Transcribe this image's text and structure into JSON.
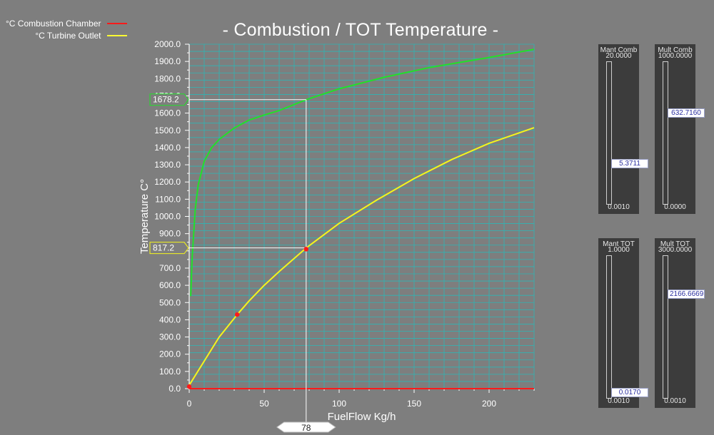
{
  "legend": {
    "items": [
      {
        "label": "°C Combustion Chamber",
        "color": "#ff1a1a"
      },
      {
        "label": "°C Turbine Outlet",
        "color": "#ffff33"
      }
    ]
  },
  "title": "- Combustion / TOT  Temperature -",
  "chart_data": {
    "type": "line",
    "title": "- Combustion / TOT  Temperature -",
    "xlabel": "FuelFlow Kg/h",
    "ylabel": "Temperature C°",
    "xlim": [
      0,
      230
    ],
    "ylim": [
      0,
      2000
    ],
    "x_ticks": [
      "0",
      "50",
      "100",
      "150",
      "200"
    ],
    "y_ticks": [
      "0.0",
      "100.0",
      "200.0",
      "300.0",
      "400.0",
      "500.0",
      "600.0",
      "700.0",
      "800.0",
      "900.0",
      "1000.0",
      "1100.0",
      "1200.0",
      "1300.0",
      "1400.0",
      "1500.0",
      "1600.0",
      "1700.0",
      "1800.0",
      "1900.0",
      "2000.0"
    ],
    "grid": true,
    "background_color": "#7e7e7e",
    "grid_color": "#2fb5b5",
    "cursor": {
      "x": 78,
      "x_label": "78",
      "readouts": [
        "1678.2",
        "817.2"
      ]
    },
    "series": [
      {
        "color": "#22e02a",
        "x": [
          1,
          2,
          4,
          6,
          10,
          15,
          20,
          30,
          40,
          50,
          60,
          78,
          100,
          130,
          160,
          200,
          230
        ],
        "y": [
          537,
          764,
          1039,
          1183,
          1320,
          1400,
          1447,
          1513,
          1560,
          1589,
          1615,
          1678,
          1741,
          1808,
          1864,
          1923,
          1970
        ]
      },
      {
        "color": "#f5f51c",
        "x": [
          0,
          10,
          20,
          32,
          40,
          50,
          60,
          78,
          100,
          125,
          150,
          175,
          200,
          230
        ],
        "y": [
          20,
          160,
          300,
          430,
          510,
          600,
          680,
          817,
          960,
          1095,
          1220,
          1330,
          1425,
          1515
        ]
      },
      {
        "color": "#ff1a1a",
        "x": [
          0,
          230
        ],
        "y": [
          0,
          0
        ]
      }
    ],
    "markers": [
      {
        "x": 0,
        "y": 12
      },
      {
        "x": 32,
        "y": 430
      },
      {
        "x": 78,
        "y": 810
      }
    ]
  },
  "panels": [
    {
      "label": "Mant Comb",
      "max": "20.0000",
      "min": "0.0010",
      "value": "5.3711",
      "fraction": 0.27
    },
    {
      "label": "Mult Comb",
      "max": "1000.0000",
      "min": "0.0000",
      "value": "632.7160",
      "fraction": 0.633
    },
    {
      "label": "Mant TOT",
      "max": "1.0000",
      "min": "0.0010",
      "value": "0.0170",
      "fraction": 0.017
    },
    {
      "label": "Mult TOT",
      "max": "3000.0000",
      "min": "0.0010",
      "value": "2166.6669",
      "fraction": 0.722
    }
  ]
}
